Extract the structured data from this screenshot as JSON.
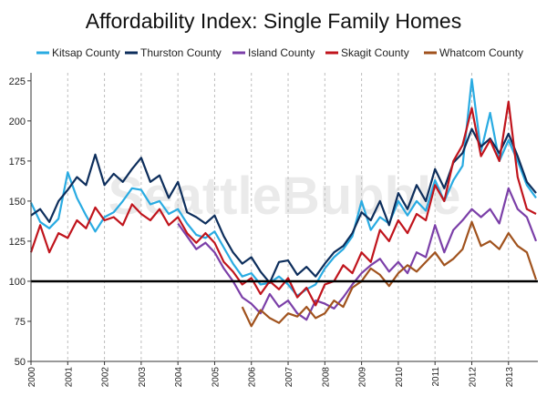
{
  "watermark": "SeattleBubble",
  "chart_data": {
    "type": "line",
    "title": "Affordability Index: Single Family Homes",
    "xlabel": "",
    "ylabel": "",
    "xlim": [
      2000,
      2013.8
    ],
    "ylim": [
      50,
      230
    ],
    "yticks": [
      50,
      75,
      100,
      125,
      150,
      175,
      200,
      225
    ],
    "xticks": [
      "2000",
      "2001",
      "2002",
      "2003",
      "2004",
      "2005",
      "2006",
      "2007",
      "2008",
      "2009",
      "2010",
      "2011",
      "2012",
      "2013"
    ],
    "reference_line": 100,
    "grid": "vertical-dashed",
    "legend": "top",
    "series": [
      {
        "name": "Kitsap County",
        "color": "#29abe2",
        "points": [
          [
            2000.0,
            149
          ],
          [
            2000.25,
            137
          ],
          [
            2000.5,
            133
          ],
          [
            2000.75,
            139
          ],
          [
            2001.0,
            168
          ],
          [
            2001.25,
            152
          ],
          [
            2001.5,
            141
          ],
          [
            2001.75,
            131
          ],
          [
            2002.0,
            140
          ],
          [
            2002.25,
            143
          ],
          [
            2002.5,
            150
          ],
          [
            2002.75,
            158
          ],
          [
            2003.0,
            157
          ],
          [
            2003.25,
            148
          ],
          [
            2003.5,
            150
          ],
          [
            2003.75,
            142
          ],
          [
            2004.0,
            145
          ],
          [
            2004.25,
            136
          ],
          [
            2004.5,
            129
          ],
          [
            2004.75,
            127
          ],
          [
            2005.0,
            131
          ],
          [
            2005.25,
            121
          ],
          [
            2005.5,
            111
          ],
          [
            2005.75,
            103
          ],
          [
            2006.0,
            105
          ],
          [
            2006.25,
            98
          ],
          [
            2006.5,
            99
          ],
          [
            2006.75,
            103
          ],
          [
            2007.0,
            98
          ],
          [
            2007.25,
            91
          ],
          [
            2007.5,
            95
          ],
          [
            2007.75,
            98
          ],
          [
            2008.0,
            108
          ],
          [
            2008.25,
            115
          ],
          [
            2008.5,
            120
          ],
          [
            2008.75,
            128
          ],
          [
            2009.0,
            150
          ],
          [
            2009.25,
            132
          ],
          [
            2009.5,
            140
          ],
          [
            2009.75,
            136
          ],
          [
            2010.0,
            150
          ],
          [
            2010.25,
            141
          ],
          [
            2010.5,
            150
          ],
          [
            2010.75,
            144
          ],
          [
            2011.0,
            163
          ],
          [
            2011.25,
            150
          ],
          [
            2011.5,
            163
          ],
          [
            2011.75,
            172
          ],
          [
            2012.0,
            226
          ],
          [
            2012.25,
            181
          ],
          [
            2012.5,
            205
          ],
          [
            2012.75,
            175
          ],
          [
            2013.0,
            188
          ],
          [
            2013.25,
            175
          ],
          [
            2013.5,
            160
          ],
          [
            2013.75,
            152
          ]
        ]
      },
      {
        "name": "Thurston County",
        "color": "#0d2e5c",
        "points": [
          [
            2000.0,
            141
          ],
          [
            2000.25,
            145
          ],
          [
            2000.5,
            137
          ],
          [
            2000.75,
            150
          ],
          [
            2001.0,
            157
          ],
          [
            2001.25,
            165
          ],
          [
            2001.5,
            160
          ],
          [
            2001.75,
            179
          ],
          [
            2002.0,
            160
          ],
          [
            2002.25,
            167
          ],
          [
            2002.5,
            162
          ],
          [
            2002.75,
            170
          ],
          [
            2003.0,
            177
          ],
          [
            2003.25,
            162
          ],
          [
            2003.5,
            166
          ],
          [
            2003.75,
            152
          ],
          [
            2004.0,
            162
          ],
          [
            2004.25,
            143
          ],
          [
            2004.5,
            140
          ],
          [
            2004.75,
            136
          ],
          [
            2005.0,
            141
          ],
          [
            2005.25,
            128
          ],
          [
            2005.5,
            118
          ],
          [
            2005.75,
            111
          ],
          [
            2006.0,
            115
          ],
          [
            2006.25,
            106
          ],
          [
            2006.5,
            99
          ],
          [
            2006.75,
            112
          ],
          [
            2007.0,
            113
          ],
          [
            2007.25,
            104
          ],
          [
            2007.5,
            109
          ],
          [
            2007.75,
            103
          ],
          [
            2008.0,
            111
          ],
          [
            2008.25,
            118
          ],
          [
            2008.5,
            122
          ],
          [
            2008.75,
            130
          ],
          [
            2009.0,
            143
          ],
          [
            2009.25,
            138
          ],
          [
            2009.5,
            150
          ],
          [
            2009.75,
            135
          ],
          [
            2010.0,
            155
          ],
          [
            2010.25,
            145
          ],
          [
            2010.5,
            160
          ],
          [
            2010.75,
            150
          ],
          [
            2011.0,
            170
          ],
          [
            2011.25,
            158
          ],
          [
            2011.5,
            174
          ],
          [
            2011.75,
            180
          ],
          [
            2012.0,
            195
          ],
          [
            2012.25,
            184
          ],
          [
            2012.5,
            189
          ],
          [
            2012.75,
            180
          ],
          [
            2013.0,
            192
          ],
          [
            2013.25,
            178
          ],
          [
            2013.5,
            162
          ],
          [
            2013.75,
            155
          ]
        ]
      },
      {
        "name": "Island County",
        "color": "#7b3fa8",
        "points": [
          [
            2004.0,
            136
          ],
          [
            2004.25,
            128
          ],
          [
            2004.5,
            120
          ],
          [
            2004.75,
            124
          ],
          [
            2005.0,
            118
          ],
          [
            2005.25,
            108
          ],
          [
            2005.5,
            100
          ],
          [
            2005.75,
            90
          ],
          [
            2006.0,
            86
          ],
          [
            2006.25,
            80
          ],
          [
            2006.5,
            92
          ],
          [
            2006.75,
            84
          ],
          [
            2007.0,
            88
          ],
          [
            2007.25,
            80
          ],
          [
            2007.5,
            76
          ],
          [
            2007.75,
            88
          ],
          [
            2008.0,
            86
          ],
          [
            2008.25,
            83
          ],
          [
            2008.5,
            90
          ],
          [
            2008.75,
            98
          ],
          [
            2009.0,
            105
          ],
          [
            2009.25,
            110
          ],
          [
            2009.5,
            114
          ],
          [
            2009.75,
            106
          ],
          [
            2010.0,
            112
          ],
          [
            2010.25,
            105
          ],
          [
            2010.5,
            118
          ],
          [
            2010.75,
            115
          ],
          [
            2011.0,
            135
          ],
          [
            2011.25,
            118
          ],
          [
            2011.5,
            132
          ],
          [
            2011.75,
            138
          ],
          [
            2012.0,
            145
          ],
          [
            2012.25,
            140
          ],
          [
            2012.5,
            145
          ],
          [
            2012.75,
            136
          ],
          [
            2013.0,
            158
          ],
          [
            2013.25,
            145
          ],
          [
            2013.5,
            140
          ],
          [
            2013.75,
            125
          ]
        ]
      },
      {
        "name": "Skagit County",
        "color": "#c0141c",
        "points": [
          [
            2000.0,
            118
          ],
          [
            2000.25,
            135
          ],
          [
            2000.5,
            118
          ],
          [
            2000.75,
            130
          ],
          [
            2001.0,
            127
          ],
          [
            2001.25,
            138
          ],
          [
            2001.5,
            133
          ],
          [
            2001.75,
            146
          ],
          [
            2002.0,
            138
          ],
          [
            2002.25,
            140
          ],
          [
            2002.5,
            135
          ],
          [
            2002.75,
            148
          ],
          [
            2003.0,
            142
          ],
          [
            2003.25,
            138
          ],
          [
            2003.5,
            145
          ],
          [
            2003.75,
            135
          ],
          [
            2004.0,
            140
          ],
          [
            2004.25,
            130
          ],
          [
            2004.5,
            124
          ],
          [
            2004.75,
            130
          ],
          [
            2005.0,
            124
          ],
          [
            2005.25,
            112
          ],
          [
            2005.5,
            106
          ],
          [
            2005.75,
            98
          ],
          [
            2006.0,
            102
          ],
          [
            2006.25,
            92
          ],
          [
            2006.5,
            100
          ],
          [
            2006.75,
            95
          ],
          [
            2007.0,
            102
          ],
          [
            2007.25,
            90
          ],
          [
            2007.5,
            96
          ],
          [
            2007.75,
            85
          ],
          [
            2008.0,
            98
          ],
          [
            2008.25,
            100
          ],
          [
            2008.5,
            110
          ],
          [
            2008.75,
            105
          ],
          [
            2009.0,
            118
          ],
          [
            2009.25,
            112
          ],
          [
            2009.5,
            132
          ],
          [
            2009.75,
            125
          ],
          [
            2010.0,
            138
          ],
          [
            2010.25,
            130
          ],
          [
            2010.5,
            142
          ],
          [
            2010.75,
            138
          ],
          [
            2011.0,
            160
          ],
          [
            2011.25,
            150
          ],
          [
            2011.5,
            175
          ],
          [
            2011.75,
            185
          ],
          [
            2012.0,
            208
          ],
          [
            2012.25,
            178
          ],
          [
            2012.5,
            188
          ],
          [
            2012.75,
            175
          ],
          [
            2013.0,
            212
          ],
          [
            2013.25,
            165
          ],
          [
            2013.5,
            145
          ],
          [
            2013.75,
            142
          ]
        ]
      },
      {
        "name": "Whatcom County",
        "color": "#a0521d",
        "points": [
          [
            2005.75,
            84
          ],
          [
            2006.0,
            72
          ],
          [
            2006.25,
            82
          ],
          [
            2006.5,
            77
          ],
          [
            2006.75,
            74
          ],
          [
            2007.0,
            80
          ],
          [
            2007.25,
            78
          ],
          [
            2007.5,
            84
          ],
          [
            2007.75,
            77
          ],
          [
            2008.0,
            80
          ],
          [
            2008.25,
            88
          ],
          [
            2008.5,
            84
          ],
          [
            2008.75,
            96
          ],
          [
            2009.0,
            100
          ],
          [
            2009.25,
            108
          ],
          [
            2009.5,
            104
          ],
          [
            2009.75,
            97
          ],
          [
            2010.0,
            105
          ],
          [
            2010.25,
            110
          ],
          [
            2010.5,
            106
          ],
          [
            2010.75,
            112
          ],
          [
            2011.0,
            118
          ],
          [
            2011.25,
            110
          ],
          [
            2011.5,
            114
          ],
          [
            2011.75,
            120
          ],
          [
            2012.0,
            137
          ],
          [
            2012.25,
            122
          ],
          [
            2012.5,
            125
          ],
          [
            2012.75,
            120
          ],
          [
            2013.0,
            130
          ],
          [
            2013.25,
            122
          ],
          [
            2013.5,
            118
          ],
          [
            2013.75,
            101
          ]
        ]
      }
    ]
  }
}
